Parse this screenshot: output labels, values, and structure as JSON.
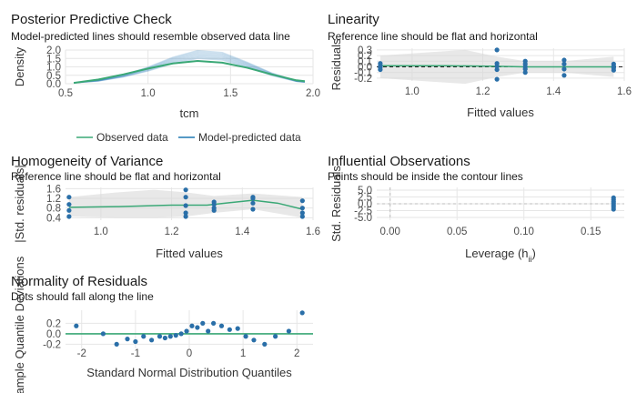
{
  "chart_data": [
    {
      "id": "ppc",
      "type": "line",
      "title": "Posterior Predictive Check",
      "subtitle": "Model-predicted lines should resemble observed data line",
      "xlabel": "tcm",
      "ylabel": "Density",
      "xlim": [
        0.5,
        2.0
      ],
      "ylim": [
        0.0,
        2.0
      ],
      "xticks": [
        "0.5",
        "1.0",
        "1.5",
        "2.0"
      ],
      "yticks": [
        "0.0",
        "0.5",
        "1.0",
        "1.5",
        "2.0"
      ],
      "series": [
        {
          "name": "Observed data",
          "color": "#3aa876",
          "x": [
            0.55,
            0.7,
            0.85,
            1.0,
            1.15,
            1.3,
            1.45,
            1.6,
            1.75,
            1.9,
            1.95
          ],
          "y": [
            0.05,
            0.25,
            0.55,
            0.9,
            1.2,
            1.35,
            1.25,
            0.95,
            0.55,
            0.2,
            0.15
          ]
        },
        {
          "name": "Model-predicted data",
          "color": "#1f78b4",
          "x": [
            0.55,
            0.7,
            0.85,
            1.0,
            1.15,
            1.3,
            1.45,
            1.6,
            1.75,
            1.9,
            1.95
          ],
          "y": [
            0.05,
            0.18,
            0.45,
            0.85,
            1.35,
            1.7,
            1.6,
            1.1,
            0.55,
            0.15,
            0.1
          ]
        }
      ],
      "legend_position": "bottom",
      "grid": true
    },
    {
      "id": "linearity",
      "type": "scatter",
      "title": "Linearity",
      "subtitle": "Reference line should be flat and horizontal",
      "xlabel": "Fitted values",
      "ylabel": "Residuals",
      "xlim": [
        0.9,
        1.6
      ],
      "ylim": [
        -0.25,
        0.33
      ],
      "xticks": [
        "1.0",
        "1.2",
        "1.4",
        "1.6"
      ],
      "yticks": [
        "-0.2",
        "-0.1",
        "0.0",
        "0.1",
        "0.2",
        "0.3"
      ],
      "points": {
        "x": [
          0.91,
          0.91,
          0.91,
          0.91,
          1.24,
          1.24,
          1.24,
          1.24,
          1.24,
          1.32,
          1.32,
          1.32,
          1.32,
          1.32,
          1.43,
          1.43,
          1.43,
          1.43,
          1.57,
          1.57,
          1.57,
          1.57
        ],
        "y": [
          0.06,
          0.02,
          -0.01,
          -0.05,
          0.3,
          0.06,
          0.01,
          -0.05,
          -0.22,
          0.1,
          0.05,
          0.0,
          -0.04,
          -0.1,
          0.12,
          0.05,
          -0.04,
          -0.15,
          0.05,
          0.01,
          -0.02,
          -0.06
        ]
      },
      "reference_y": 0,
      "smooth": {
        "x": [
          0.91,
          1.1,
          1.24,
          1.32,
          1.43,
          1.57
        ],
        "y": [
          0.02,
          0.02,
          0.01,
          0.0,
          0.0,
          0.0
        ]
      },
      "grid": true
    },
    {
      "id": "homogeneity",
      "type": "scatter",
      "title": "Homogeneity of Variance",
      "subtitle": "Reference line should be flat and horizontal",
      "xlabel": "Fitted values",
      "ylabel": "|Std. residuals|",
      "xlim": [
        0.9,
        1.6
      ],
      "ylim": [
        0.3,
        1.65
      ],
      "xticks": [
        "1.0",
        "1.2",
        "1.4",
        "1.6"
      ],
      "yticks": [
        "0.4",
        "0.8",
        "1.2",
        "1.6"
      ],
      "points": {
        "x": [
          0.91,
          0.91,
          0.91,
          0.91,
          1.24,
          1.24,
          1.24,
          1.24,
          1.24,
          1.32,
          1.32,
          1.32,
          1.32,
          1.43,
          1.43,
          1.43,
          1.43,
          1.57,
          1.57,
          1.57,
          1.57
        ],
        "y": [
          1.25,
          0.95,
          0.7,
          0.45,
          1.55,
          1.25,
          0.9,
          0.6,
          0.45,
          1.05,
          0.95,
          0.8,
          0.7,
          1.25,
          1.2,
          1.0,
          0.75,
          1.1,
          0.8,
          0.6,
          0.45
        ]
      },
      "smooth": {
        "x": [
          0.91,
          1.05,
          1.2,
          1.3,
          1.43,
          1.5,
          1.57
        ],
        "y": [
          0.83,
          0.86,
          0.92,
          0.92,
          1.12,
          1.0,
          0.75
        ]
      },
      "grid": true
    },
    {
      "id": "influential",
      "type": "scatter",
      "title": "Influential Observations",
      "subtitle": "Points should be inside the contour lines",
      "xlabel": "Leverage (h",
      "xlabel_sub": "ii",
      "xlabel_end": ")",
      "ylabel": "Std. Residuals",
      "xlim": [
        -0.01,
        0.175
      ],
      "ylim": [
        -6,
        6
      ],
      "xticks": [
        "0.00",
        "0.05",
        "0.10",
        "0.15"
      ],
      "yticks": [
        "-5.0",
        "-2.5",
        "0.0",
        "2.5",
        "5.0"
      ],
      "points": {
        "x": [
          0.167,
          0.167,
          0.167,
          0.167,
          0.167,
          0.167,
          0.167
        ],
        "y": [
          2.2,
          1.5,
          0.8,
          0.2,
          -0.5,
          -1.2,
          -2.0
        ]
      },
      "grid": true
    },
    {
      "id": "normality",
      "type": "scatter",
      "title": "Normality of Residuals",
      "subtitle": "Dots should fall along the line",
      "xlabel": "Standard Normal Distribution Quantiles",
      "ylabel": "Sample Quantile Deviations",
      "xlim": [
        -2.3,
        2.3
      ],
      "ylim": [
        -0.28,
        0.45
      ],
      "xticks": [
        "-2",
        "-1",
        "0",
        "1",
        "2"
      ],
      "yticks": [
        "-0.2",
        "0.0",
        "0.2"
      ],
      "points": {
        "x": [
          -2.1,
          -1.6,
          -1.35,
          -1.15,
          -1.0,
          -0.85,
          -0.7,
          -0.55,
          -0.45,
          -0.35,
          -0.25,
          -0.15,
          -0.05,
          0.05,
          0.15,
          0.25,
          0.35,
          0.45,
          0.6,
          0.75,
          0.9,
          1.05,
          1.2,
          1.4,
          1.6,
          1.85,
          2.1
        ],
        "y": [
          0.15,
          0.0,
          -0.2,
          -0.1,
          -0.15,
          -0.05,
          -0.12,
          -0.05,
          -0.08,
          -0.05,
          -0.03,
          0.0,
          0.05,
          0.15,
          0.12,
          0.2,
          0.05,
          0.2,
          0.15,
          0.08,
          0.1,
          -0.05,
          -0.12,
          -0.2,
          -0.05,
          0.05,
          0.4
        ]
      },
      "reference_y": 0,
      "grid": true
    }
  ]
}
